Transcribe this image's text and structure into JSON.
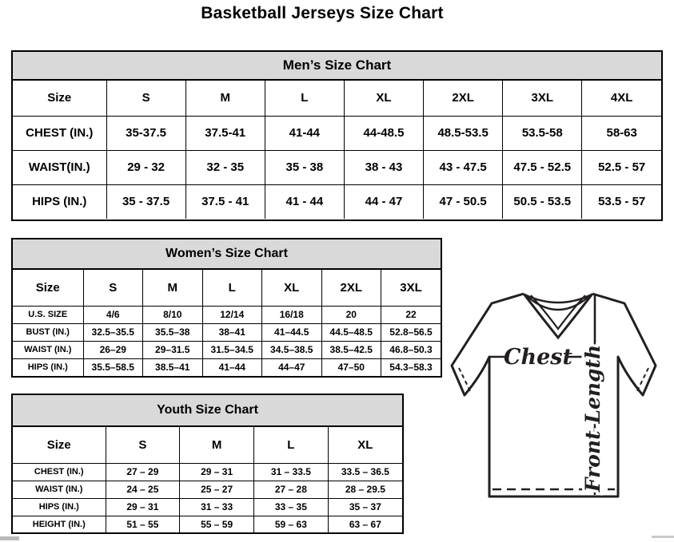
{
  "title": "Basketball Jerseys Size Chart",
  "colors": {
    "header_band_bg": "#d9d9d9",
    "table_border": "#000000",
    "diagram_stroke": "#231f20"
  },
  "tables": {
    "men": {
      "title": "Men’s Size Chart",
      "columns": [
        "Size",
        "S",
        "M",
        "L",
        "XL",
        "2XL",
        "3XL",
        "4XL"
      ],
      "rows": [
        {
          "label": "CHEST (IN.)",
          "values": [
            "35-37.5",
            "37.5-41",
            "41-44",
            "44-48.5",
            "48.5-53.5",
            "53.5-58",
            "58-63"
          ]
        },
        {
          "label": "WAIST(IN.)",
          "values": [
            "29 - 32",
            "32 - 35",
            "35 - 38",
            "38 - 43",
            "43 - 47.5",
            "47.5 - 52.5",
            "52.5 - 57"
          ]
        },
        {
          "label": "HIPS (IN.)",
          "values": [
            "35 - 37.5",
            "37.5 - 41",
            "41 - 44",
            "44 - 47",
            "47 - 50.5",
            "50.5 - 53.5",
            "53.5 - 57"
          ]
        }
      ]
    },
    "women": {
      "title": "Women’s Size Chart",
      "columns": [
        "Size",
        "S",
        "M",
        "L",
        "XL",
        "2XL",
        "3XL"
      ],
      "rows": [
        {
          "label": "U.S. SIZE",
          "values": [
            "4/6",
            "8/10",
            "12/14",
            "16/18",
            "20",
            "22"
          ]
        },
        {
          "label": "BUST (IN.)",
          "values": [
            "32.5–35.5",
            "35.5–38",
            "38–41",
            "41–44.5",
            "44.5–48.5",
            "52.8–56.5"
          ]
        },
        {
          "label": "WAIST (IN.)",
          "values": [
            "26–29",
            "29–31.5",
            "31.5–34.5",
            "34.5–38.5",
            "38.5–42.5",
            "46.8–50.3"
          ]
        },
        {
          "label": "HIPS (IN.)",
          "values": [
            "35.5–58.5",
            "38.5–41",
            "41–44",
            "44–47",
            "47–50",
            "54.3–58.3"
          ]
        }
      ]
    },
    "youth": {
      "title": "Youth Size Chart",
      "columns": [
        "Size",
        "S",
        "M",
        "L",
        "XL"
      ],
      "rows": [
        {
          "label": "CHEST (IN.)",
          "values": [
            "27 – 29",
            "29 – 31",
            "31 – 33.5",
            "33.5 – 36.5"
          ]
        },
        {
          "label": "WAIST (IN.)",
          "values": [
            "24 – 25",
            "25 – 27",
            "27 – 28",
            "28 – 29.5"
          ]
        },
        {
          "label": "HIPS (IN.)",
          "values": [
            "29 – 31",
            "31 – 33",
            "33 – 35",
            "35 – 37"
          ]
        },
        {
          "label": "HEIGHT (IN.)",
          "values": [
            "51 – 55",
            "55 – 59",
            "59 – 63",
            "63 – 67"
          ]
        }
      ]
    }
  },
  "diagram": {
    "chest_label": "Chest",
    "front_length_label": "Front Length"
  }
}
